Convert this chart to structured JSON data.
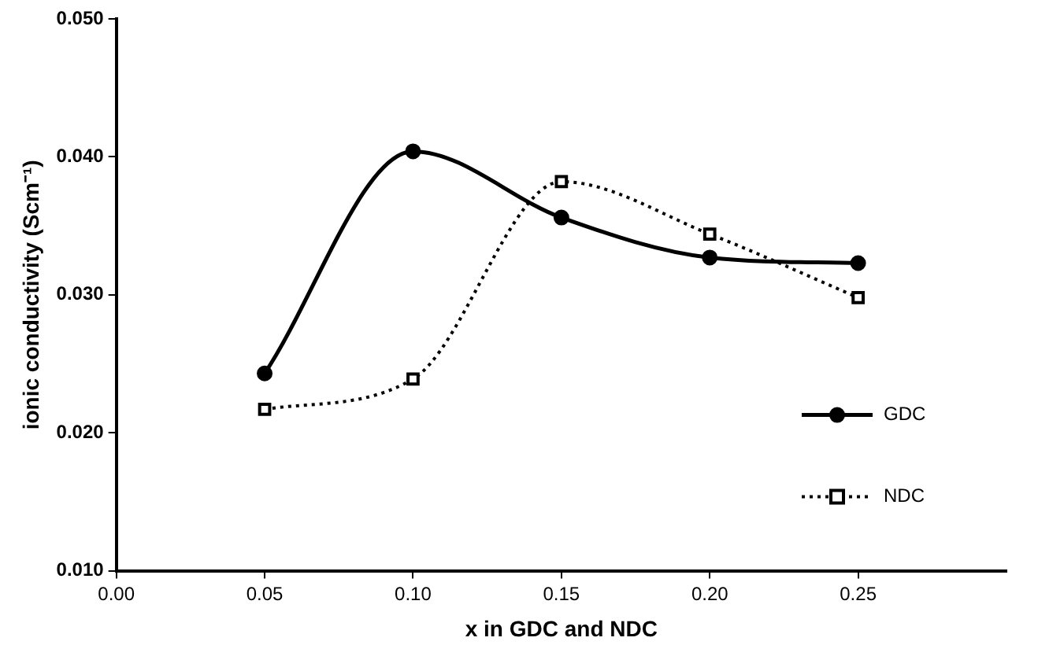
{
  "chart_data": {
    "type": "line",
    "xlabel": "x in GDC and NDC",
    "ylabel": "ionic conductivity (Scm⁻¹)",
    "xlim": [
      0,
      0.3
    ],
    "xticks": [
      {
        "value": 0,
        "label": "0.00"
      },
      {
        "value": 0.05,
        "label": "0.05"
      },
      {
        "value": 0.1,
        "label": "0.10"
      },
      {
        "value": 0.15,
        "label": "0.15"
      },
      {
        "value": 0.2,
        "label": "0.20"
      },
      {
        "value": 0.25,
        "label": "0.25"
      }
    ],
    "ylim": [
      0.01,
      0.05
    ],
    "yticks": [
      {
        "value": 0.01,
        "label": "0.010"
      },
      {
        "value": 0.02,
        "label": "0.020"
      },
      {
        "value": 0.03,
        "label": "0.030"
      },
      {
        "value": 0.04,
        "label": "0.040"
      },
      {
        "value": 0.05,
        "label": "0.050"
      }
    ],
    "x": [
      0.05,
      0.1,
      0.15,
      0.2,
      0.25
    ],
    "grid": false,
    "legend": "bottom right",
    "series": [
      {
        "name": "GDC",
        "color": "#000000",
        "marker": "circle",
        "line_style": "solid",
        "values": [
          0.0243,
          0.0404,
          0.0356,
          0.0327,
          0.0323
        ]
      },
      {
        "name": "NDC",
        "color": "#000000",
        "marker": "square",
        "line_style": "dotted",
        "values": [
          0.0217,
          0.0239,
          0.0382,
          0.0344,
          0.0298
        ]
      }
    ]
  }
}
